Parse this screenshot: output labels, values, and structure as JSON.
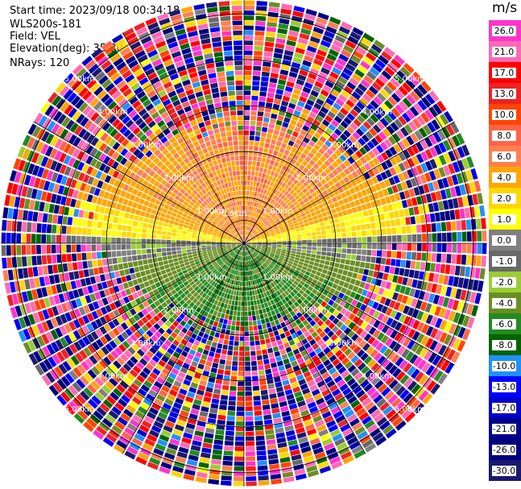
{
  "header": {
    "start_time": "Start time: 2023/09/18 00:34:18",
    "instrument": "WLS200s-181",
    "field": "Field: VEL",
    "elevation": "Elevation(deg): 35.30",
    "nrays": "NRays: 120"
  },
  "chart_data": {
    "type": "heatmap",
    "projection": "polar-ppi",
    "field": "VEL",
    "units": "m/s",
    "nrays": 120,
    "max_range_km": 5.3,
    "range_rings_km": [
      0.5,
      1.0,
      2.0,
      3.0,
      4.0,
      5.0
    ],
    "ring_labels": [
      "1.00km",
      "2.00km",
      "3.00km",
      "4.00km",
      "5.00km"
    ],
    "inner_label": "0.5km",
    "colorbar": {
      "title": "m/s",
      "ticks": [
        "26.0",
        "21.0",
        "17.0",
        "13.0",
        "10.0",
        "8.0",
        "6.0",
        "4.0",
        "2.0",
        "1.0",
        "0.0",
        "-1.0",
        "-2.0",
        "-4.0",
        "-6.0",
        "-8.0",
        "-10.0",
        "-13.0",
        "-17.0",
        "-21.0",
        "-26.0",
        "-30.0"
      ],
      "bins": [
        {
          "from": 26,
          "to": 30,
          "color": "#ff33cc"
        },
        {
          "from": 21,
          "to": 26,
          "color": "#ff69b4"
        },
        {
          "from": 17,
          "to": 21,
          "color": "#ff0000"
        },
        {
          "from": 13,
          "to": 17,
          "color": "#ee2222"
        },
        {
          "from": 10,
          "to": 13,
          "color": "#ff4500"
        },
        {
          "from": 8,
          "to": 10,
          "color": "#ff6347"
        },
        {
          "from": 6,
          "to": 8,
          "color": "#ff7f50"
        },
        {
          "from": 4,
          "to": 6,
          "color": "#ffa500"
        },
        {
          "from": 2,
          "to": 4,
          "color": "#ffd700"
        },
        {
          "from": 1,
          "to": 2,
          "color": "#ffff00"
        },
        {
          "from": 0,
          "to": 1,
          "color": "#808080"
        },
        {
          "from": -1,
          "to": 0,
          "color": "#696969"
        },
        {
          "from": -2,
          "to": -1,
          "color": "#9acd32"
        },
        {
          "from": -4,
          "to": -2,
          "color": "#6b8e23"
        },
        {
          "from": -6,
          "to": -4,
          "color": "#228b22"
        },
        {
          "from": -8,
          "to": -6,
          "color": "#006400"
        },
        {
          "from": -10,
          "to": -8,
          "color": "#1e90ff"
        },
        {
          "from": -13,
          "to": -10,
          "color": "#0000ff"
        },
        {
          "from": -17,
          "to": -13,
          "color": "#0000cd"
        },
        {
          "from": -21,
          "to": -17,
          "color": "#00008b"
        },
        {
          "from": -26,
          "to": -21,
          "color": "#000080"
        },
        {
          "from": -30,
          "to": -26,
          "color": "#191970"
        }
      ]
    }
  }
}
